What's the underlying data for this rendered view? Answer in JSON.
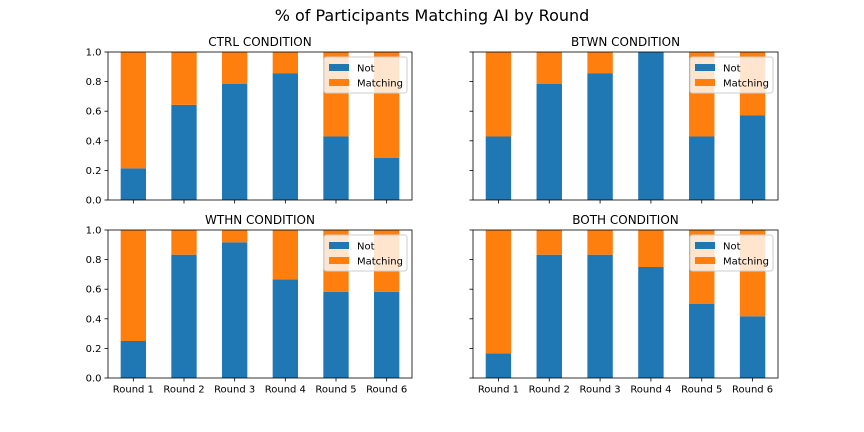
{
  "chart_data": {
    "type": "bar",
    "stacked": true,
    "suptitle": "% of Participants Matching AI by Round",
    "categories": [
      "Round 1",
      "Round 2",
      "Round 3",
      "Round 4",
      "Round 5",
      "Round 6"
    ],
    "ylim": [
      0,
      1
    ],
    "yticks": [
      "0.0",
      "0.2",
      "0.4",
      "0.6",
      "0.8",
      "1.0"
    ],
    "legend": {
      "position": "upper-right",
      "entries": [
        "Not",
        "Matching"
      ]
    },
    "colors": {
      "Not": "#1f77b4",
      "Matching": "#ff7f0e"
    },
    "panels": [
      {
        "title": "CTRL CONDITION",
        "series": [
          {
            "name": "Not",
            "values": [
              0.214,
              0.643,
              0.786,
              0.857,
              0.429,
              0.286
            ]
          },
          {
            "name": "Matching",
            "values": [
              0.786,
              0.357,
              0.214,
              0.143,
              0.571,
              0.714
            ]
          }
        ]
      },
      {
        "title": "BTWN CONDITION",
        "series": [
          {
            "name": "Not",
            "values": [
              0.429,
              0.786,
              0.857,
              1.0,
              0.429,
              0.571
            ]
          },
          {
            "name": "Matching",
            "values": [
              0.571,
              0.214,
              0.143,
              0.0,
              0.571,
              0.429
            ]
          }
        ]
      },
      {
        "title": "WTHN CONDITION",
        "series": [
          {
            "name": "Not",
            "values": [
              0.25,
              0.833,
              0.917,
              0.667,
              0.583,
              0.583
            ]
          },
          {
            "name": "Matching",
            "values": [
              0.75,
              0.167,
              0.083,
              0.333,
              0.417,
              0.417
            ]
          }
        ]
      },
      {
        "title": "BOTH CONDITION",
        "series": [
          {
            "name": "Not",
            "values": [
              0.167,
              0.833,
              0.833,
              0.75,
              0.5,
              0.417
            ]
          },
          {
            "name": "Matching",
            "values": [
              0.833,
              0.167,
              0.167,
              0.25,
              0.5,
              0.583
            ]
          }
        ]
      }
    ]
  }
}
